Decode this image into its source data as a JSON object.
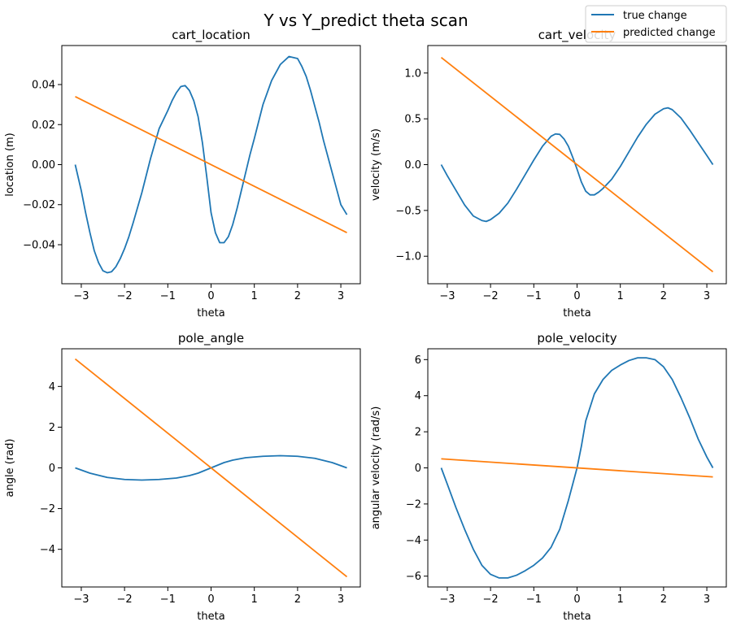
{
  "figure": {
    "suptitle": "Y vs Y_predict theta scan"
  },
  "legend": {
    "position": "top-right",
    "entries": [
      {
        "label": "true change",
        "color": "#1f77b4"
      },
      {
        "label": "predicted change",
        "color": "#ff7f0e"
      }
    ]
  },
  "chart_data": [
    {
      "type": "line",
      "title": "cart_location",
      "xlabel": "theta",
      "ylabel": "location (m)",
      "xlim": [
        -3.45,
        3.45
      ],
      "ylim": [
        -0.0595,
        0.0595
      ],
      "xticks": [
        -3,
        -2,
        -1,
        0,
        1,
        2,
        3
      ],
      "yticks": [
        -0.04,
        -0.02,
        0.0,
        0.02,
        0.04
      ],
      "ytick_labels": [
        "−0.04",
        "−0.02",
        "0.00",
        "0.02",
        "0.04"
      ],
      "series": [
        {
          "name": "true change",
          "color": "#1f77b4",
          "x": [
            -3.14,
            -3.0,
            -2.9,
            -2.8,
            -2.7,
            -2.6,
            -2.5,
            -2.4,
            -2.3,
            -2.2,
            -2.1,
            -2.0,
            -1.9,
            -1.8,
            -1.6,
            -1.4,
            -1.2,
            -1.0,
            -0.9,
            -0.8,
            -0.7,
            -0.6,
            -0.5,
            -0.4,
            -0.3,
            -0.2,
            -0.1,
            0.0,
            0.1,
            0.2,
            0.3,
            0.4,
            0.5,
            0.6,
            0.7,
            0.8,
            0.9,
            1.0,
            1.2,
            1.4,
            1.6,
            1.8,
            2.0,
            2.1,
            2.2,
            2.3,
            2.4,
            2.5,
            2.6,
            2.7,
            2.8,
            2.9,
            3.0,
            3.14
          ],
          "y": [
            0.0,
            -0.013,
            -0.024,
            -0.034,
            -0.043,
            -0.049,
            -0.053,
            -0.054,
            -0.0535,
            -0.051,
            -0.047,
            -0.042,
            -0.036,
            -0.029,
            -0.014,
            0.003,
            0.018,
            0.027,
            0.032,
            0.036,
            0.039,
            0.0395,
            0.037,
            0.032,
            0.024,
            0.011,
            -0.006,
            -0.024,
            -0.034,
            -0.039,
            -0.039,
            -0.036,
            -0.03,
            -0.022,
            -0.013,
            -0.004,
            0.005,
            0.013,
            0.03,
            0.042,
            0.05,
            0.054,
            0.053,
            0.049,
            0.044,
            0.037,
            0.029,
            0.021,
            0.012,
            0.004,
            -0.004,
            -0.012,
            -0.02,
            -0.025
          ]
        },
        {
          "name": "predicted change",
          "color": "#ff7f0e",
          "x": [
            -3.14,
            3.14
          ],
          "y": [
            0.034,
            -0.034
          ]
        }
      ]
    },
    {
      "type": "line",
      "title": "cart_velocity",
      "xlabel": "theta",
      "ylabel": "velocity (m/s)",
      "xlim": [
        -3.45,
        3.45
      ],
      "ylim": [
        -1.3,
        1.3
      ],
      "xticks": [
        -3,
        -2,
        -1,
        0,
        1,
        2,
        3
      ],
      "yticks": [
        -1.0,
        -0.5,
        0.0,
        0.5,
        1.0
      ],
      "ytick_labels": [
        "−1.0",
        "−0.5",
        "0.0",
        "0.5",
        "1.0"
      ],
      "series": [
        {
          "name": "true change",
          "color": "#1f77b4",
          "x": [
            -3.14,
            -3.0,
            -2.8,
            -2.6,
            -2.4,
            -2.2,
            -2.1,
            -2.0,
            -1.8,
            -1.6,
            -1.4,
            -1.2,
            -1.0,
            -0.8,
            -0.6,
            -0.5,
            -0.4,
            -0.3,
            -0.2,
            -0.1,
            0.0,
            0.1,
            0.2,
            0.3,
            0.4,
            0.5,
            0.6,
            0.8,
            1.0,
            1.2,
            1.4,
            1.6,
            1.8,
            2.0,
            2.1,
            2.2,
            2.4,
            2.6,
            2.8,
            3.0,
            3.14
          ],
          "y": [
            0.0,
            -0.12,
            -0.28,
            -0.44,
            -0.56,
            -0.61,
            -0.62,
            -0.6,
            -0.53,
            -0.42,
            -0.27,
            -0.11,
            0.05,
            0.2,
            0.31,
            0.335,
            0.33,
            0.28,
            0.2,
            0.08,
            -0.05,
            -0.19,
            -0.29,
            -0.33,
            -0.33,
            -0.3,
            -0.26,
            -0.16,
            -0.02,
            0.14,
            0.3,
            0.44,
            0.55,
            0.61,
            0.62,
            0.6,
            0.51,
            0.38,
            0.24,
            0.1,
            0.0
          ]
        },
        {
          "name": "predicted change",
          "color": "#ff7f0e",
          "x": [
            -3.14,
            3.14
          ],
          "y": [
            1.17,
            -1.17
          ]
        }
      ]
    },
    {
      "type": "line",
      "title": "pole_angle",
      "xlabel": "theta",
      "ylabel": "angle (rad)",
      "xlim": [
        -3.45,
        3.45
      ],
      "ylim": [
        -5.85,
        5.85
      ],
      "xticks": [
        -3,
        -2,
        -1,
        0,
        1,
        2,
        3
      ],
      "yticks": [
        -4,
        -2,
        0,
        2,
        4
      ],
      "ytick_labels": [
        "−4",
        "−2",
        "0",
        "2",
        "4"
      ],
      "series": [
        {
          "name": "true change",
          "color": "#1f77b4",
          "x": [
            -3.14,
            -2.8,
            -2.4,
            -2.0,
            -1.6,
            -1.2,
            -0.8,
            -0.5,
            -0.3,
            -0.15,
            0.0,
            0.15,
            0.3,
            0.5,
            0.8,
            1.2,
            1.6,
            2.0,
            2.4,
            2.8,
            3.14
          ],
          "y": [
            0.0,
            -0.26,
            -0.47,
            -0.57,
            -0.6,
            -0.57,
            -0.5,
            -0.38,
            -0.26,
            -0.13,
            0.0,
            0.13,
            0.26,
            0.38,
            0.5,
            0.57,
            0.6,
            0.57,
            0.47,
            0.26,
            0.0
          ]
        },
        {
          "name": "predicted change",
          "color": "#ff7f0e",
          "x": [
            -3.14,
            3.14
          ],
          "y": [
            5.35,
            -5.35
          ]
        }
      ]
    },
    {
      "type": "line",
      "title": "pole_velocity",
      "xlabel": "theta",
      "ylabel": "angular velocity (rad/s)",
      "xlim": [
        -3.45,
        3.45
      ],
      "ylim": [
        -6.6,
        6.6
      ],
      "xticks": [
        -3,
        -2,
        -1,
        0,
        1,
        2,
        3
      ],
      "yticks": [
        -6,
        -4,
        -2,
        0,
        2,
        4,
        6
      ],
      "ytick_labels": [
        "−6",
        "−4",
        "−2",
        "0",
        "2",
        "4",
        "6"
      ],
      "series": [
        {
          "name": "true change",
          "color": "#1f77b4",
          "x": [
            -3.14,
            -3.0,
            -2.8,
            -2.6,
            -2.4,
            -2.2,
            -2.0,
            -1.8,
            -1.6,
            -1.4,
            -1.2,
            -1.0,
            -0.8,
            -0.6,
            -0.4,
            -0.2,
            -0.1,
            0.0,
            0.1,
            0.2,
            0.4,
            0.6,
            0.8,
            1.0,
            1.2,
            1.4,
            1.6,
            1.8,
            2.0,
            2.2,
            2.4,
            2.6,
            2.8,
            3.0,
            3.14
          ],
          "y": [
            0.0,
            -0.9,
            -2.2,
            -3.4,
            -4.5,
            -5.4,
            -5.9,
            -6.1,
            -6.1,
            -5.95,
            -5.7,
            -5.4,
            -5.0,
            -4.4,
            -3.4,
            -1.8,
            -0.9,
            0.0,
            1.2,
            2.6,
            4.1,
            4.9,
            5.4,
            5.7,
            5.95,
            6.1,
            6.1,
            6.0,
            5.6,
            4.9,
            3.9,
            2.8,
            1.6,
            0.6,
            0.0
          ]
        },
        {
          "name": "predicted change",
          "color": "#ff7f0e",
          "x": [
            -3.14,
            3.14
          ],
          "y": [
            0.5,
            -0.5
          ]
        }
      ]
    }
  ]
}
